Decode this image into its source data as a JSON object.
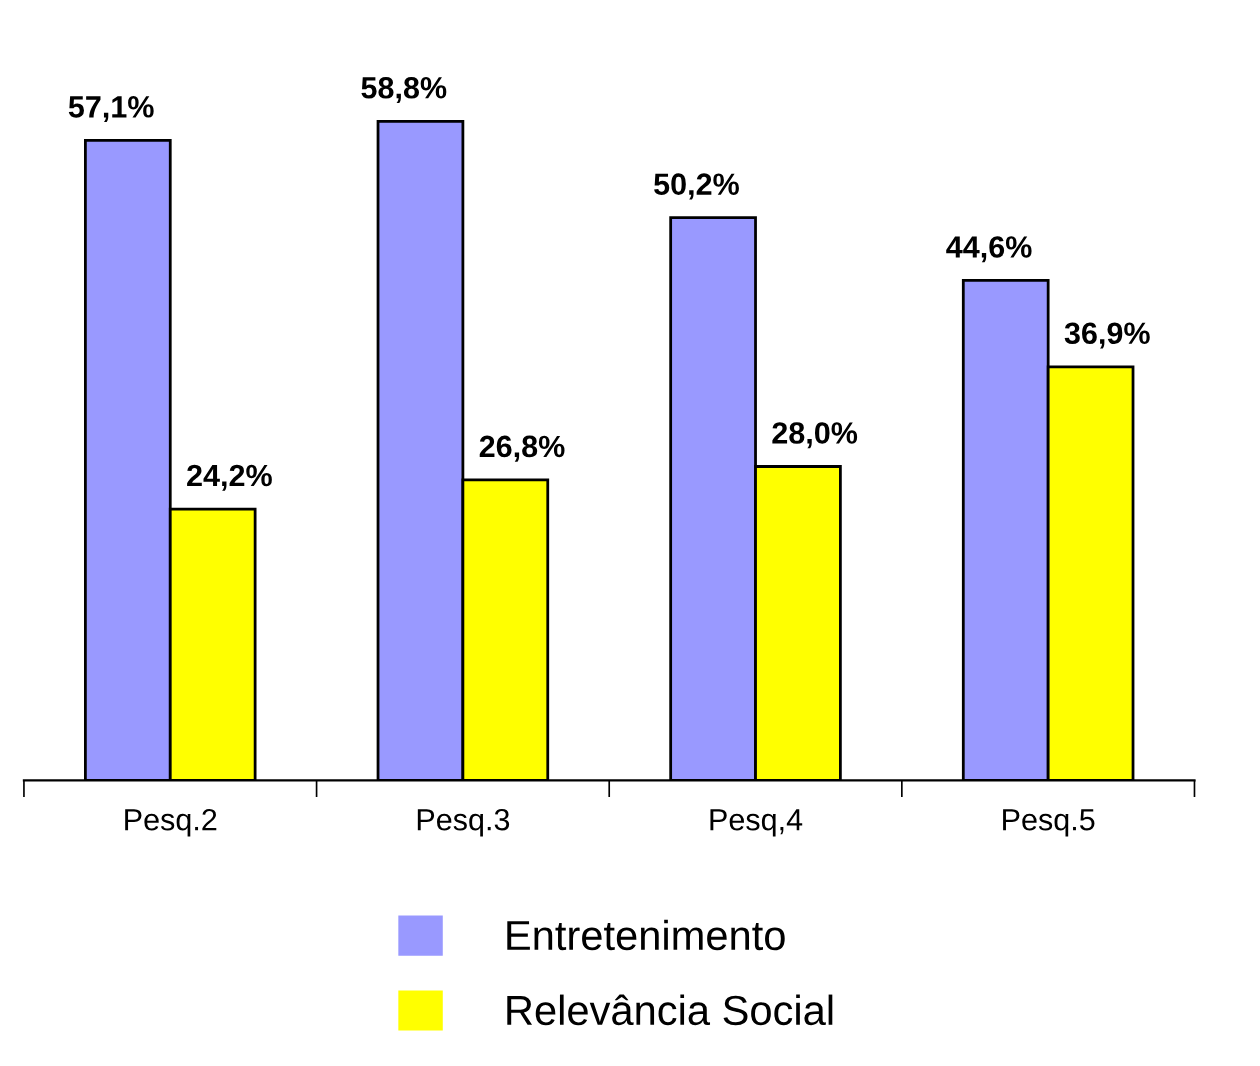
{
  "chart_data": {
    "type": "bar",
    "categories": [
      "Pesq.2",
      "Pesq.3",
      "Pesq,4",
      "Pesq.5"
    ],
    "series": [
      {
        "name": "Entretenimento",
        "color": "#9999ff",
        "values": [
          57.1,
          58.8,
          50.2,
          44.6
        ],
        "value_labels": [
          "57,1%",
          "58,8%",
          "50,2%",
          "44,6%"
        ]
      },
      {
        "name": "Relevância Social",
        "color": "#ffff00",
        "values": [
          24.2,
          26.8,
          28.0,
          36.9
        ],
        "value_labels": [
          "24,2%",
          "26,8%",
          "28,0%",
          "36,9%"
        ]
      }
    ],
    "legend": "bottom",
    "grid": false
  }
}
